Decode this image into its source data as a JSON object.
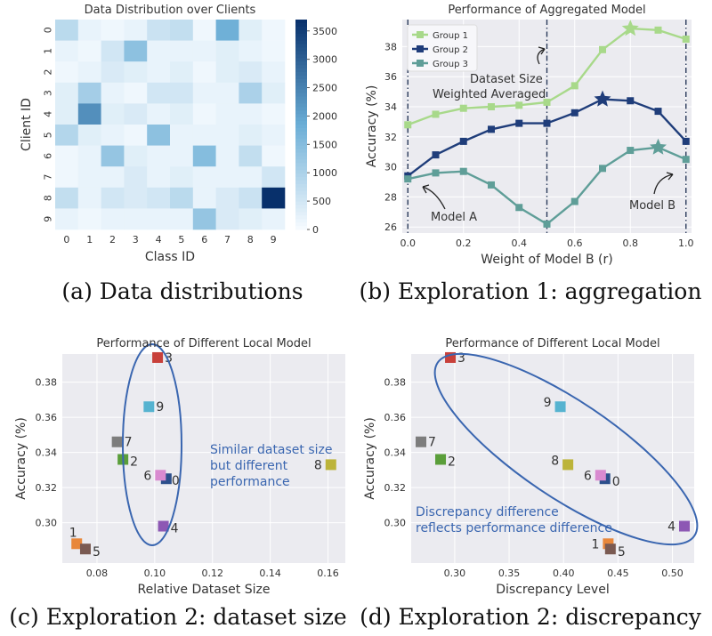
{
  "captions": {
    "a": "(a) Data distributions",
    "b": "(b) Exploration 1: aggregation",
    "c": "(c) Exploration 2: dataset size",
    "d": "(d) Exploration 2: discrepancy"
  },
  "chart_data": [
    {
      "id": "a",
      "type": "heatmap",
      "title": "Data Distribution over Clients",
      "xlabel": "Class ID",
      "ylabel": "Client ID",
      "x_categories": [
        "0",
        "1",
        "2",
        "3",
        "4",
        "5",
        "6",
        "7",
        "8",
        "9"
      ],
      "y_categories": [
        "0",
        "1",
        "2",
        "3",
        "4",
        "5",
        "6",
        "7",
        "8",
        "9"
      ],
      "colorbar": {
        "min": 0,
        "max": 3700,
        "ticks": [
          0,
          500,
          1000,
          1500,
          2000,
          2500,
          3000,
          3500
        ],
        "low_color": "#f7fbff",
        "high_color": "#08306b"
      },
      "matrix": [
        [
          800,
          200,
          100,
          200,
          600,
          700,
          100,
          1800,
          300,
          100
        ],
        [
          200,
          100,
          500,
          1400,
          200,
          200,
          200,
          300,
          200,
          100
        ],
        [
          100,
          200,
          400,
          300,
          200,
          300,
          100,
          300,
          400,
          200
        ],
        [
          300,
          1100,
          200,
          100,
          500,
          500,
          200,
          200,
          1000,
          300
        ],
        [
          300,
          2300,
          300,
          400,
          200,
          300,
          100,
          200,
          200,
          100
        ],
        [
          900,
          300,
          200,
          100,
          1400,
          200,
          200,
          200,
          300,
          200
        ],
        [
          100,
          200,
          1300,
          300,
          200,
          200,
          1500,
          200,
          700,
          100
        ],
        [
          100,
          200,
          200,
          400,
          200,
          300,
          200,
          200,
          200,
          500
        ],
        [
          700,
          200,
          500,
          400,
          500,
          800,
          200,
          400,
          600,
          3700
        ],
        [
          200,
          100,
          200,
          200,
          200,
          200,
          1300,
          400,
          300,
          200
        ]
      ]
    },
    {
      "id": "b",
      "type": "line",
      "title": "Performance of Aggregated Model",
      "xlabel": "Weight of Model B (r)",
      "ylabel": "Accuracy (%)",
      "xlim": [
        -0.02,
        1.02
      ],
      "ylim": [
        25.6,
        39.8
      ],
      "x_ticks": [
        0.0,
        0.2,
        0.4,
        0.6,
        0.8,
        1.0
      ],
      "y_ticks": [
        26,
        28,
        30,
        32,
        34,
        36,
        38
      ],
      "x": [
        0.0,
        0.1,
        0.2,
        0.3,
        0.4,
        0.5,
        0.6,
        0.7,
        0.8,
        0.9,
        1.0
      ],
      "series": [
        {
          "name": "Group 1",
          "color": "#a8d98a",
          "values": [
            32.8,
            33.5,
            33.9,
            34.0,
            34.1,
            34.3,
            35.4,
            37.8,
            39.2,
            39.1,
            38.5
          ],
          "star_index": 8
        },
        {
          "name": "Group 2",
          "color": "#1f3d7a",
          "values": [
            29.4,
            30.8,
            31.7,
            32.5,
            32.9,
            32.9,
            33.6,
            34.5,
            34.4,
            33.7,
            31.7
          ],
          "star_index": 7
        },
        {
          "name": "Group 3",
          "color": "#5f9e98",
          "values": [
            29.2,
            29.6,
            29.7,
            28.8,
            27.3,
            26.2,
            27.7,
            29.9,
            31.1,
            31.3,
            30.5
          ],
          "star_index": 9
        }
      ],
      "legend_placement": "top-left",
      "vlines": [
        0.0,
        0.5,
        1.0
      ],
      "annotations": [
        "Dataset Size",
        "Weighted Averaged",
        "Model A",
        "Model B"
      ]
    },
    {
      "id": "c",
      "type": "scatter",
      "title": "Performance of Different Local Model",
      "xlabel": "Relative Dataset Size",
      "ylabel": "Accuracy (%)",
      "xlim": [
        0.068,
        0.166
      ],
      "ylim": [
        0.277,
        0.396
      ],
      "x_ticks": [
        0.08,
        0.1,
        0.12,
        0.14,
        0.16
      ],
      "y_ticks": [
        0.3,
        0.32,
        0.34,
        0.36,
        0.38
      ],
      "points": [
        {
          "label": "0",
          "x": 0.104,
          "y": 0.325,
          "color": "#2c4f8c"
        },
        {
          "label": "1",
          "x": 0.073,
          "y": 0.288,
          "color": "#e8873a"
        },
        {
          "label": "2",
          "x": 0.089,
          "y": 0.336,
          "color": "#5a9e3a"
        },
        {
          "label": "3",
          "x": 0.101,
          "y": 0.394,
          "color": "#c8403a"
        },
        {
          "label": "4",
          "x": 0.103,
          "y": 0.298,
          "color": "#8d58b4"
        },
        {
          "label": "5",
          "x": 0.076,
          "y": 0.285,
          "color": "#7a5a52"
        },
        {
          "label": "6",
          "x": 0.102,
          "y": 0.327,
          "color": "#d98ad0"
        },
        {
          "label": "7",
          "x": 0.087,
          "y": 0.346,
          "color": "#7d7d7d"
        },
        {
          "label": "8",
          "x": 0.161,
          "y": 0.333,
          "color": "#bcb43a"
        },
        {
          "label": "9",
          "x": 0.098,
          "y": 0.366,
          "color": "#56b3d0"
        }
      ],
      "annotation": [
        "Similar dataset size",
        "but different",
        "performance"
      ]
    },
    {
      "id": "d",
      "type": "scatter",
      "title": "Performance of Different Local Model",
      "xlabel": "Discrepancy Level",
      "ylabel": "Accuracy (%)",
      "xlim": [
        0.26,
        0.52
      ],
      "ylim": [
        0.277,
        0.396
      ],
      "x_ticks": [
        0.3,
        0.35,
        0.4,
        0.45,
        0.5
      ],
      "y_ticks": [
        0.3,
        0.32,
        0.34,
        0.36,
        0.38
      ],
      "points": [
        {
          "label": "0",
          "x": 0.438,
          "y": 0.325,
          "color": "#2c4f8c"
        },
        {
          "label": "1",
          "x": 0.441,
          "y": 0.288,
          "color": "#e8873a"
        },
        {
          "label": "2",
          "x": 0.287,
          "y": 0.336,
          "color": "#5a9e3a"
        },
        {
          "label": "3",
          "x": 0.296,
          "y": 0.394,
          "color": "#c8403a"
        },
        {
          "label": "4",
          "x": 0.511,
          "y": 0.298,
          "color": "#8d58b4"
        },
        {
          "label": "5",
          "x": 0.443,
          "y": 0.285,
          "color": "#7a5a52"
        },
        {
          "label": "6",
          "x": 0.434,
          "y": 0.327,
          "color": "#d98ad0"
        },
        {
          "label": "7",
          "x": 0.269,
          "y": 0.346,
          "color": "#7d7d7d"
        },
        {
          "label": "8",
          "x": 0.404,
          "y": 0.333,
          "color": "#bcb43a"
        },
        {
          "label": "9",
          "x": 0.397,
          "y": 0.366,
          "color": "#56b3d0"
        }
      ],
      "annotation": [
        "Discrepancy difference",
        "reflects performance difference"
      ]
    }
  ]
}
